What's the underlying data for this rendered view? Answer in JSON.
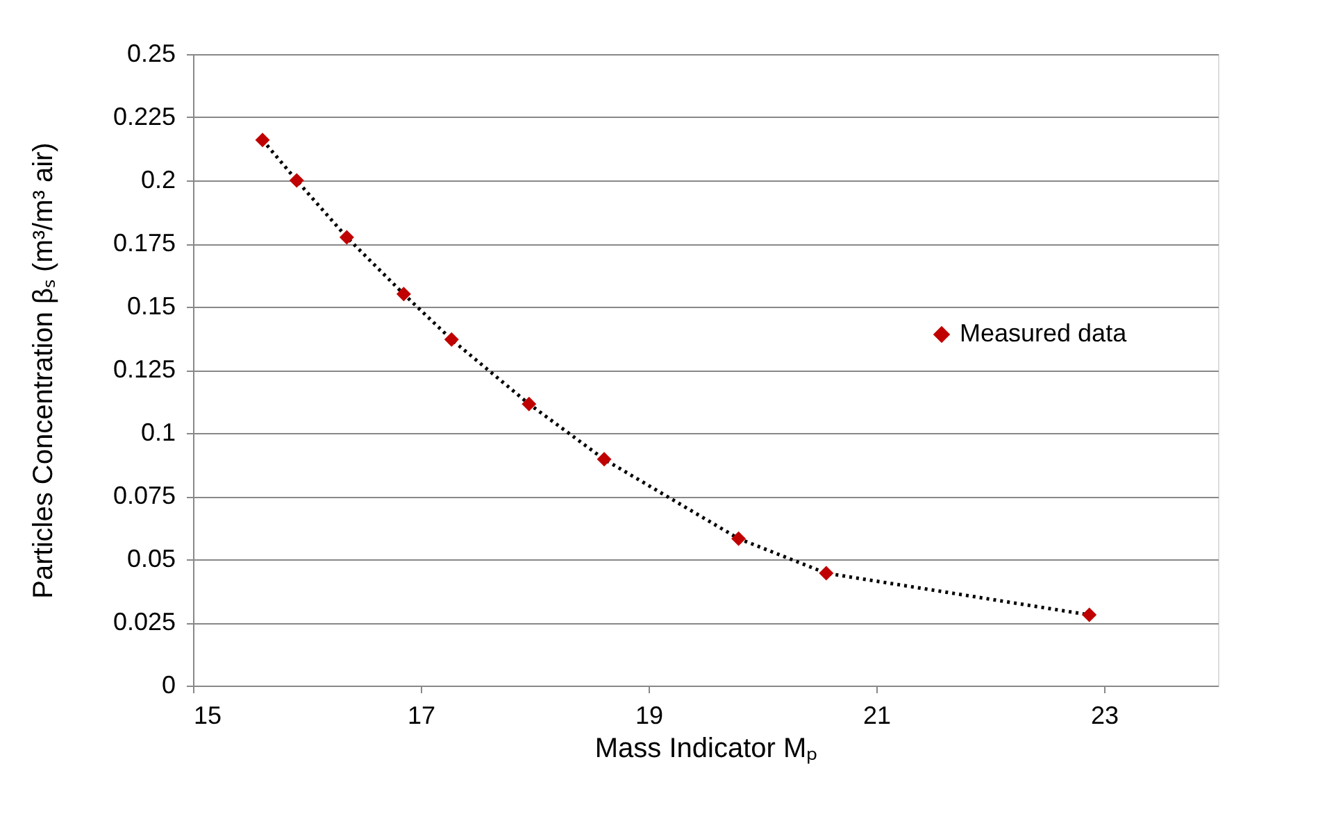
{
  "chart_data": {
    "type": "line",
    "xlabel": "Mass Indicator Mₚ",
    "ylabel": "Particles Concentration βₛ (m³/m³ air)",
    "x": [
      15.61,
      15.91,
      16.35,
      16.85,
      17.27,
      17.95,
      18.61,
      19.79,
      20.56,
      22.87
    ],
    "series": [
      {
        "name": "Measured data",
        "color": "#c00000",
        "values": [
          0.216,
          0.2,
          0.1775,
          0.155,
          0.137,
          0.1115,
          0.0896,
          0.0582,
          0.0445,
          0.028
        ]
      }
    ],
    "xlim": [
      15,
      24
    ],
    "xticks": [
      15,
      17,
      19,
      21,
      23
    ],
    "ylim": [
      0,
      0.25
    ],
    "yticks": [
      0,
      0.025,
      0.05,
      0.075,
      0.1,
      0.125,
      0.15,
      0.175,
      0.2,
      0.225,
      0.25
    ],
    "grid": "y",
    "legend": "right",
    "marker": "diamond",
    "line_style": "dotted"
  }
}
